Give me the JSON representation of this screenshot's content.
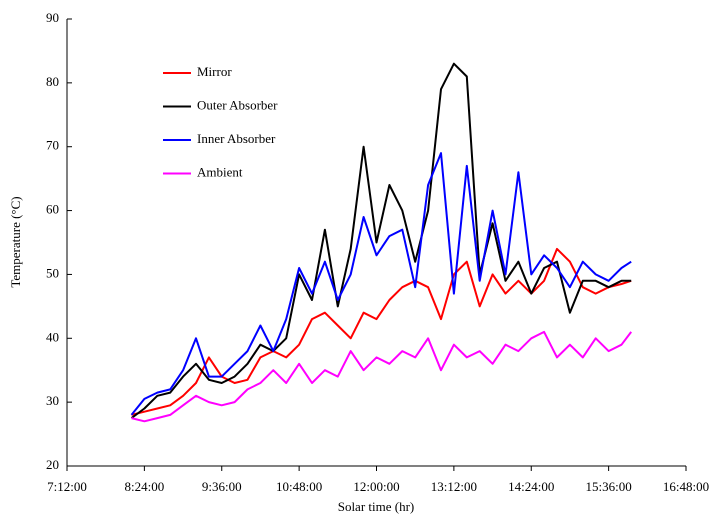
{
  "chart_data": {
    "type": "line",
    "xlabel": "Solar time (hr)",
    "ylabel": "Temperature (°C)",
    "x": [
      8.2,
      8.4,
      8.6,
      8.8,
      9.0,
      9.2,
      9.4,
      9.6,
      9.8,
      10.0,
      10.2,
      10.4,
      10.6,
      10.8,
      11.0,
      11.2,
      11.4,
      11.6,
      11.8,
      12.0,
      12.2,
      12.4,
      12.6,
      12.8,
      13.0,
      13.2,
      13.4,
      13.6,
      13.8,
      14.0,
      14.2,
      14.4,
      14.6,
      14.8,
      15.0,
      15.2,
      15.4,
      15.6,
      15.8,
      15.95
    ],
    "series": [
      {
        "name": "Mirror",
        "color": "#ff0000",
        "values": [
          28,
          28.5,
          29,
          29.5,
          31,
          33,
          37,
          34,
          33,
          33.5,
          37,
          38,
          37,
          39,
          43,
          44,
          42,
          40,
          44,
          43,
          46,
          48,
          49,
          48,
          43,
          50,
          52,
          45,
          50,
          47,
          49,
          47,
          49,
          54,
          52,
          48,
          47,
          48,
          48.5,
          49
        ]
      },
      {
        "name": "Outer Absorber",
        "color": "#000000",
        "values": [
          27.5,
          29,
          31,
          31.5,
          34,
          36,
          33.5,
          33,
          34,
          36,
          39,
          38,
          40,
          50,
          46,
          57,
          45,
          54,
          70,
          55,
          64,
          60,
          52,
          60,
          79,
          83,
          81,
          50,
          58,
          49,
          52,
          47,
          51,
          52,
          44,
          49,
          49,
          48,
          49,
          49
        ]
      },
      {
        "name": " Inner Absorber",
        "color": "#0000ff",
        "values": [
          28,
          30.5,
          31.5,
          32,
          35,
          40,
          34,
          34,
          36,
          38,
          42,
          38,
          43,
          51,
          47,
          52,
          46,
          50,
          59,
          53,
          56,
          57,
          48,
          64,
          69,
          47,
          67,
          49,
          60,
          50,
          66,
          50,
          53,
          51,
          48,
          52,
          50,
          49,
          51,
          52
        ]
      },
      {
        "name": "Ambient",
        "color": "#ff00ff",
        "values": [
          27.5,
          27,
          27.5,
          28,
          29.5,
          31,
          30,
          29.5,
          30,
          32,
          33,
          35,
          33,
          36,
          33,
          35,
          34,
          38,
          35,
          37,
          36,
          38,
          37,
          40,
          35,
          39,
          37,
          38,
          36,
          39,
          38,
          40,
          41,
          37,
          39,
          37,
          40,
          38,
          39,
          41
        ]
      }
    ],
    "xlim": [
      7.2,
      16.8
    ],
    "xticks": [
      {
        "value": 7.2,
        "label": "7:12:00"
      },
      {
        "value": 8.4,
        "label": "8:24:00"
      },
      {
        "value": 9.6,
        "label": "9:36:00"
      },
      {
        "value": 10.8,
        "label": "10:48:00"
      },
      {
        "value": 12.0,
        "label": "12:00:00"
      },
      {
        "value": 13.2,
        "label": "13:12:00"
      },
      {
        "value": 14.4,
        "label": "14:24:00"
      },
      {
        "value": 15.6,
        "label": "15:36:00"
      },
      {
        "value": 16.8,
        "label": "16:48:00"
      }
    ],
    "ylim": [
      20,
      90
    ],
    "yticks": [
      20,
      30,
      40,
      50,
      60,
      70,
      80,
      90
    ],
    "legend": "upper-left"
  }
}
